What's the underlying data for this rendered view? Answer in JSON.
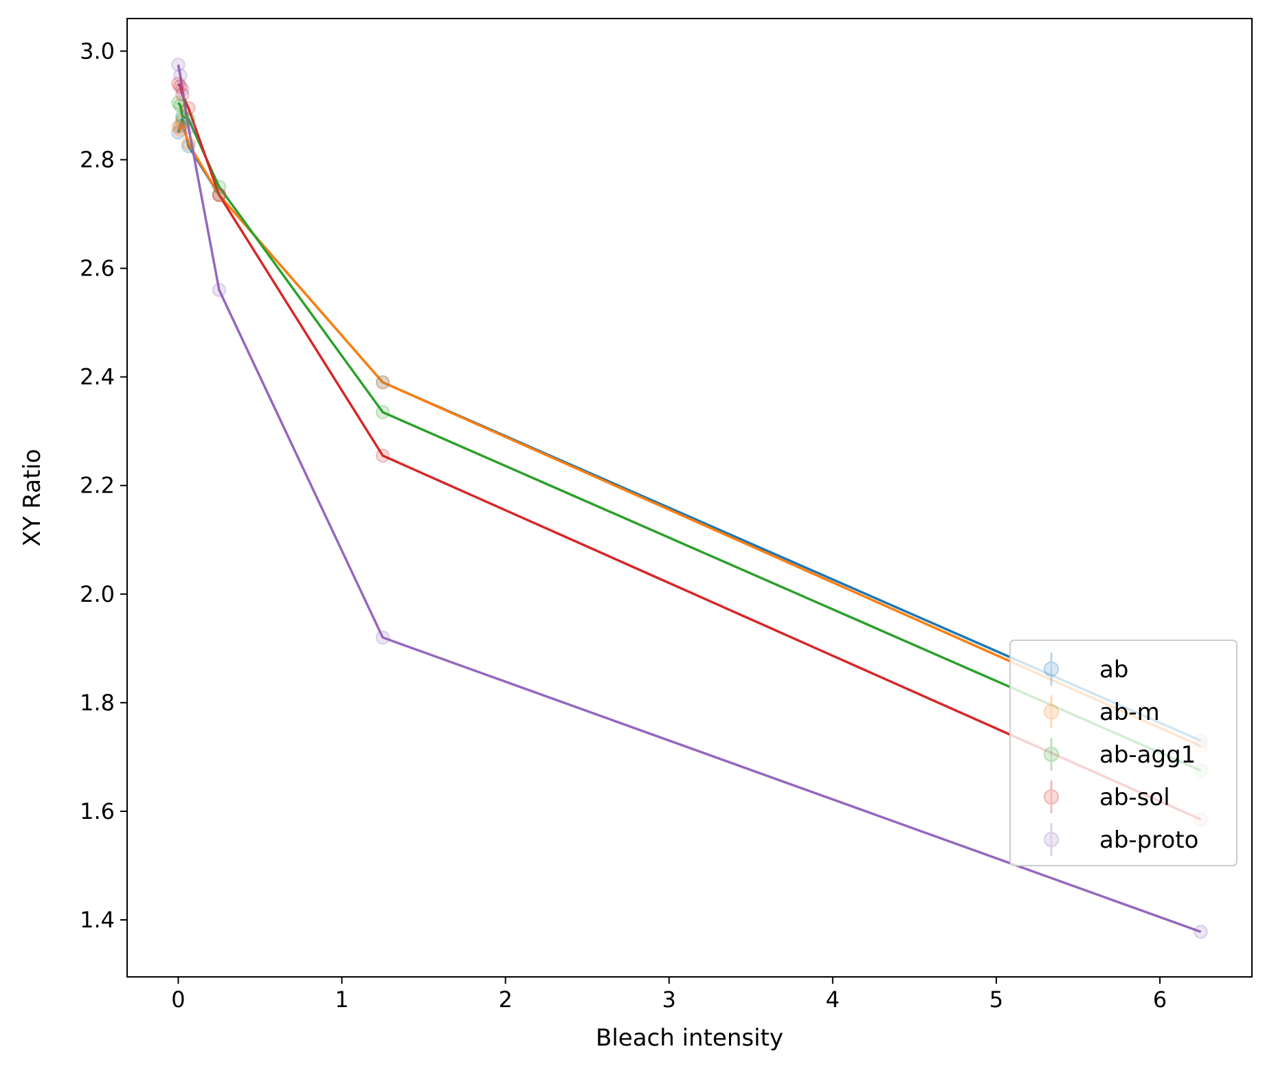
{
  "chart_data": {
    "type": "line",
    "title": "",
    "xlabel": "Bleach intensity",
    "ylabel": "XY Ratio",
    "xlim": [
      -0.3125,
      6.5625
    ],
    "ylim": [
      1.295,
      3.06
    ],
    "x_ticks": [
      0,
      1,
      2,
      3,
      4,
      5,
      6
    ],
    "y_ticks": [
      1.4,
      1.6,
      1.8,
      2.0,
      2.2,
      2.4,
      2.6,
      2.8,
      3.0
    ],
    "y_tick_labels": [
      "1.4",
      "1.6",
      "1.8",
      "2.0",
      "2.2",
      "2.4",
      "2.6",
      "2.8",
      "3.0"
    ],
    "grid": false,
    "legend_position": "lower right",
    "series": [
      {
        "name": "ab",
        "color": "#1f77b4",
        "x": [
          0,
          0.0125,
          0.025,
          0.0625,
          0.25,
          1.25,
          6.25
        ],
        "y": [
          2.85,
          2.862,
          2.875,
          2.825,
          2.735,
          2.39,
          1.73
        ]
      },
      {
        "name": "ab-m",
        "color": "#ff7f0e",
        "x": [
          0,
          0.0125,
          0.025,
          0.0625,
          0.25,
          1.25,
          6.25
        ],
        "y": [
          2.86,
          2.855,
          2.87,
          2.83,
          2.735,
          2.39,
          1.72
        ]
      },
      {
        "name": "ab-agg1",
        "color": "#2ca02c",
        "x": [
          0,
          0.0125,
          0.025,
          0.0625,
          0.25,
          1.25,
          6.25
        ],
        "y": [
          2.905,
          2.9,
          2.88,
          2.875,
          2.75,
          2.335,
          1.675
        ]
      },
      {
        "name": "ab-sol",
        "color": "#d62728",
        "x": [
          0,
          0.0125,
          0.025,
          0.0625,
          0.25,
          1.25,
          6.25
        ],
        "y": [
          2.94,
          2.935,
          2.92,
          2.895,
          2.735,
          2.255,
          1.585
        ]
      },
      {
        "name": "ab-proto",
        "color": "#9467bd",
        "x": [
          0,
          0.0125,
          0.025,
          0.0625,
          0.25,
          1.25,
          6.25
        ],
        "y": [
          2.975,
          2.955,
          2.93,
          2.86,
          2.56,
          1.92,
          1.378
        ]
      }
    ]
  }
}
